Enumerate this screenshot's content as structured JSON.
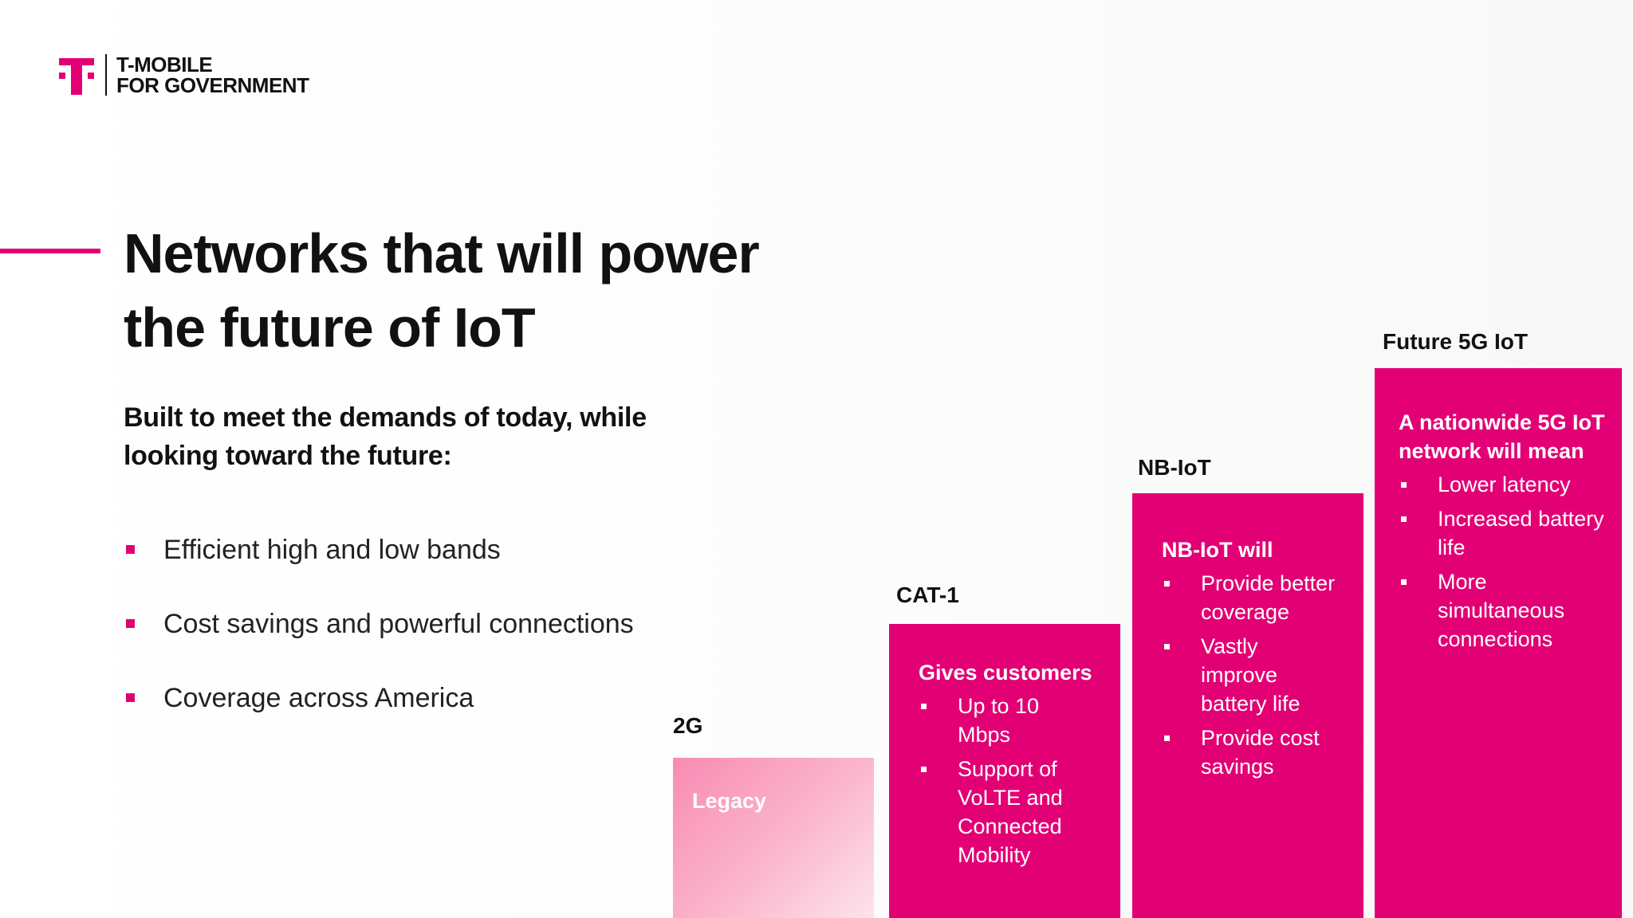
{
  "logo": {
    "line1": "T-MOBILE",
    "line2": "FOR GOVERNMENT"
  },
  "title": "Networks that will power the future of IoT",
  "subtitle": "Built to meet the demands of today, while looking toward the future:",
  "bullets": [
    "Efficient high and low bands",
    "Cost savings and powerful connections",
    "Coverage across America"
  ],
  "steps": [
    {
      "label": "2G",
      "heading": "Legacy",
      "items": []
    },
    {
      "label": "CAT-1",
      "heading": "Gives customers",
      "items": [
        "Up to 10 Mbps",
        "Support of VoLTE and Connected Mobility"
      ]
    },
    {
      "label": "NB-IoT",
      "heading": "NB-IoT will",
      "items": [
        "Provide better coverage",
        "Vastly improve battery life",
        "Provide cost savings"
      ]
    },
    {
      "label": "Future 5G IoT",
      "heading": "A nationwide 5G IoT network will mean",
      "items": [
        "Lower latency",
        "Increased battery life",
        "More simultaneous connections"
      ]
    }
  ],
  "colors": {
    "brand_magenta": "#e20074",
    "legacy_pink": "#f98bb3"
  }
}
